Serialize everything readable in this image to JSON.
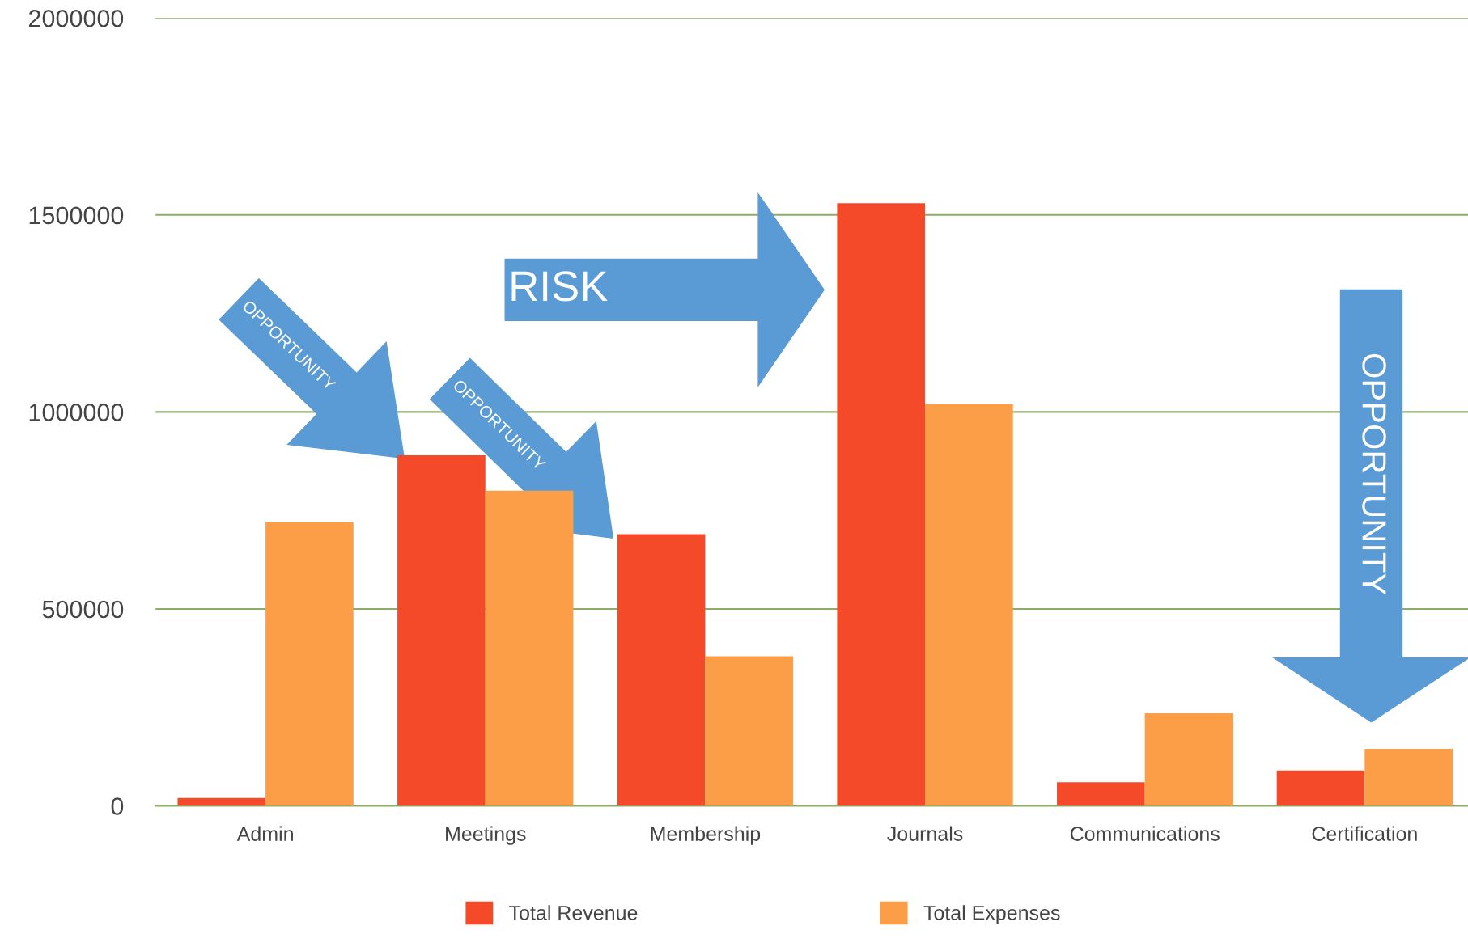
{
  "chart_data": {
    "type": "bar",
    "categories": [
      "Admin",
      "Meetings",
      "Membership",
      "Journals",
      "Communications",
      "Certification"
    ],
    "series": [
      {
        "name": "Total Revenue",
        "color": "#f44a2a",
        "values": [
          20000,
          890000,
          690000,
          1530000,
          60000,
          90000
        ]
      },
      {
        "name": "Total Expenses",
        "color": "#fb9e47",
        "values": [
          720000,
          800000,
          380000,
          1020000,
          235000,
          145000
        ]
      }
    ],
    "ylim": [
      0,
      2000000
    ],
    "yticks": [
      0,
      500000,
      1000000,
      1500000,
      2000000
    ],
    "grid": "y",
    "legend": "bottom",
    "annotations": [
      "OPPORTUNITY",
      "OPPORTUNITY",
      "RISK",
      "OPPORTUNITY"
    ]
  }
}
